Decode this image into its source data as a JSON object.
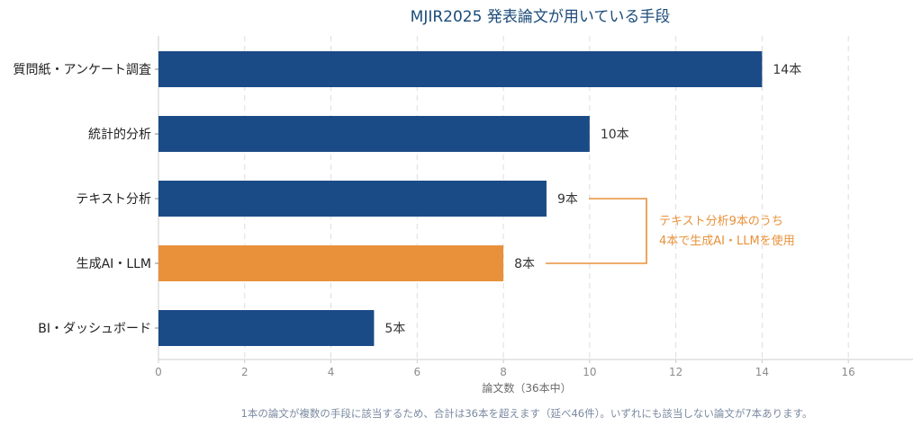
{
  "chart_data": {
    "type": "bar",
    "orientation": "horizontal",
    "title": "MJIR2025 発表論文が用いている手段",
    "categories": [
      "質問紙・アンケート調査",
      "統計的分析",
      "テキスト分析",
      "生成AI・LLM",
      "BI・ダッシュボード"
    ],
    "values": [
      14,
      10,
      9,
      8,
      5
    ],
    "value_labels": [
      "14本",
      "10本",
      "9本",
      "8本",
      "5本"
    ],
    "highlight_index": 3,
    "xlabel": "論文数（36本中）",
    "ylabel": "",
    "xlim": [
      0,
      17.5
    ],
    "xticks": [
      0,
      2,
      4,
      6,
      8,
      10,
      12,
      14,
      16
    ],
    "grid": true,
    "colors": {
      "bar": "#1b4b87",
      "highlight": "#e8913a",
      "annotation": "#e8913a"
    },
    "annotation": {
      "lines": [
        "テキスト分析9本のうち",
        "4本で生成AI・LLMを使用"
      ],
      "connects": [
        2,
        3
      ]
    },
    "footnote": "1本の論文が複数の手段に該当するため、合計は36本を超えます（延べ46件）。いずれにも該当しない論文が7本あります。"
  }
}
